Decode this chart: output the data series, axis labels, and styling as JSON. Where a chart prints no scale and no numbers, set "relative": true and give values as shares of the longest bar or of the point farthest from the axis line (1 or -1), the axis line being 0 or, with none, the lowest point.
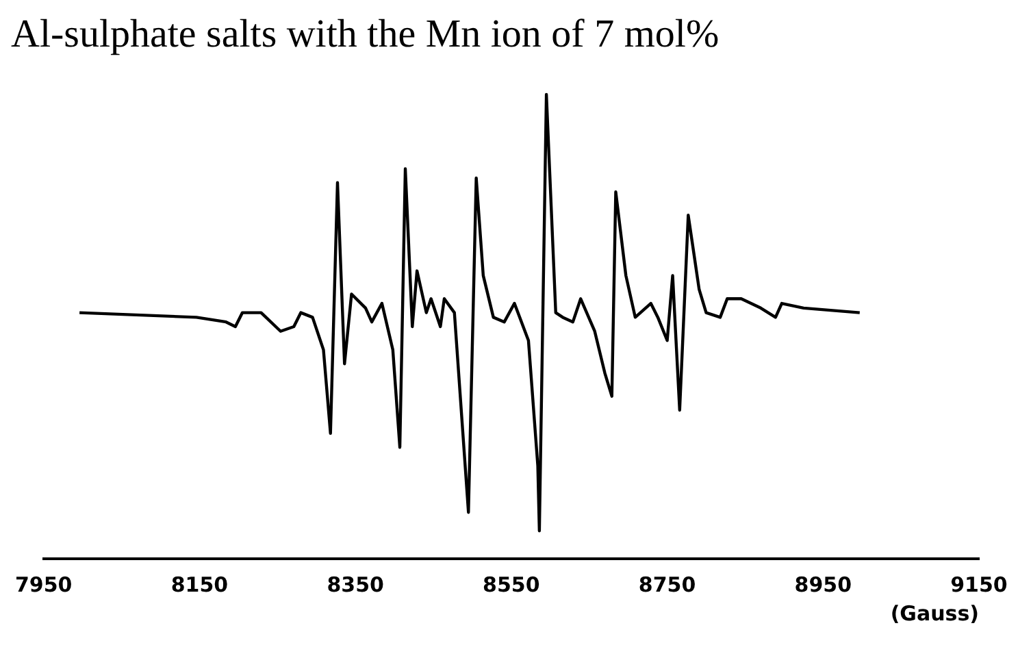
{
  "chart_data": {
    "type": "line",
    "title": "Al-sulphate salts with the Mn ion of 7 mol%",
    "xlabel": "(Gauss)",
    "relative": true,
    "color": "#000000",
    "x": [
      7996,
      8146,
      8184,
      8196,
      8205,
      8229,
      8254,
      8271,
      8280,
      8295,
      8309,
      8318,
      8327,
      8336,
      8345,
      8363,
      8371,
      8384,
      8398,
      8407,
      8414,
      8423,
      8429,
      8441,
      8447,
      8459,
      8464,
      8477,
      8495,
      8505,
      8514,
      8527,
      8541,
      8554,
      8572,
      8584,
      8586,
      8595,
      8607,
      8616,
      8629,
      8639,
      8657,
      8670,
      8679,
      8684,
      8697,
      8709,
      8729,
      8738,
      8750,
      8757,
      8766,
      8777,
      8791,
      8800,
      8818,
      8827,
      8845,
      8870,
      8889,
      8897,
      8925,
      8997
    ],
    "values": [
      0.53,
      0.52,
      0.51,
      0.5,
      0.53,
      0.53,
      0.49,
      0.5,
      0.53,
      0.52,
      0.45,
      0.27,
      0.81,
      0.42,
      0.57,
      0.54,
      0.51,
      0.55,
      0.45,
      0.24,
      0.84,
      0.5,
      0.62,
      0.53,
      0.56,
      0.5,
      0.56,
      0.53,
      0.1,
      0.82,
      0.61,
      0.52,
      0.51,
      0.55,
      0.47,
      0.2,
      0.06,
      1.0,
      0.53,
      0.52,
      0.51,
      0.56,
      0.49,
      0.4,
      0.35,
      0.79,
      0.61,
      0.52,
      0.55,
      0.52,
      0.47,
      0.61,
      0.32,
      0.74,
      0.58,
      0.53,
      0.52,
      0.56,
      0.56,
      0.54,
      0.52,
      0.55,
      0.54,
      0.53
    ],
    "xlim": [
      7950,
      9150
    ],
    "xticks": [
      7950,
      8150,
      8350,
      8550,
      8750,
      8950,
      9150
    ],
    "marker": "none",
    "legend": false
  }
}
